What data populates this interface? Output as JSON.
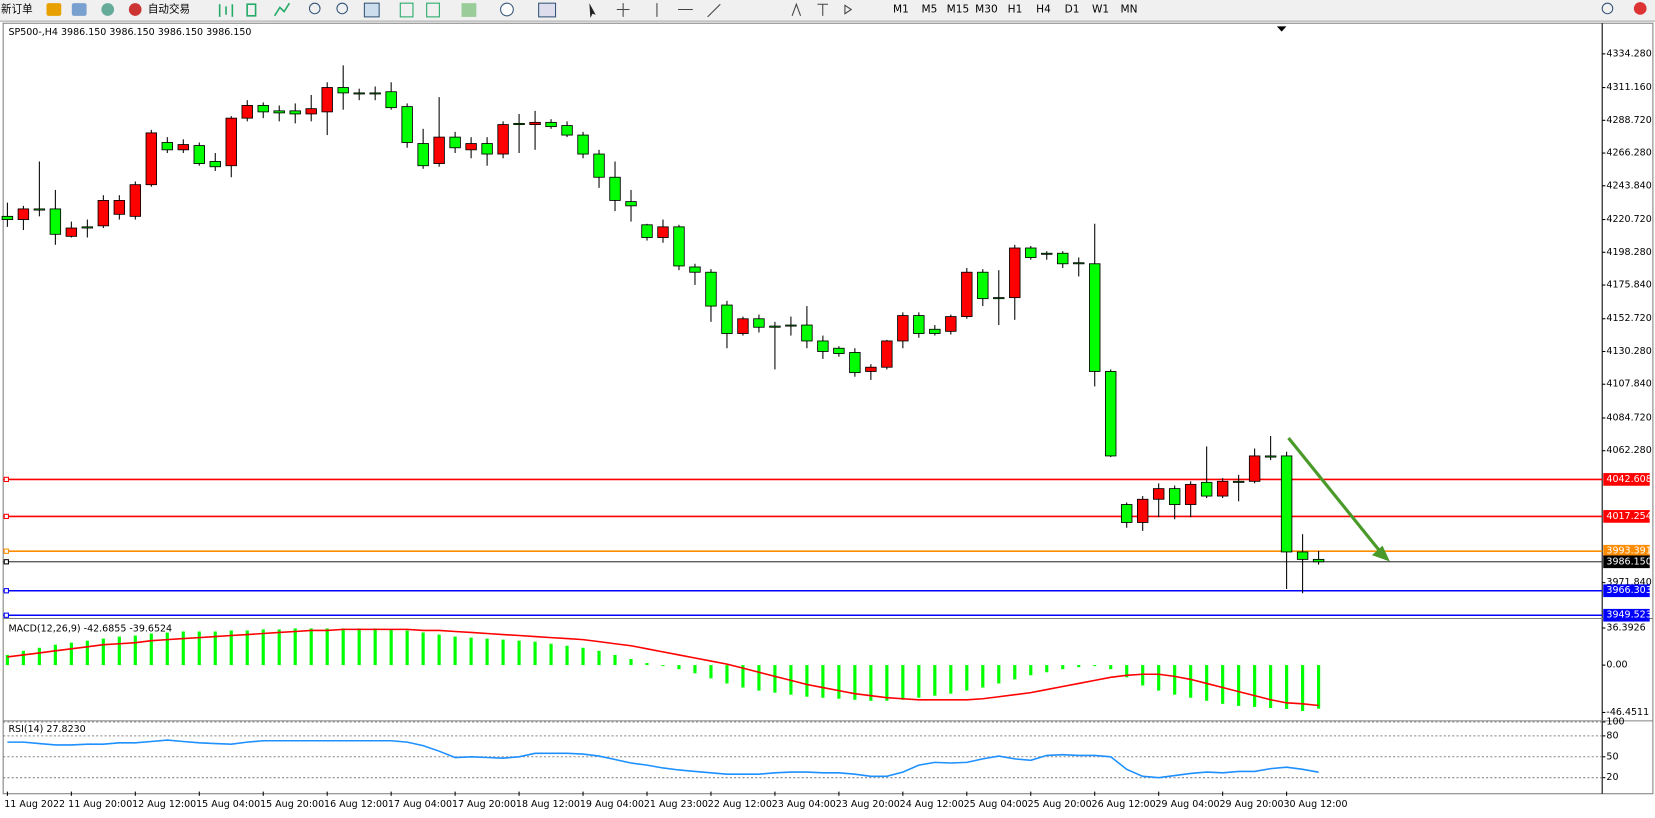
{
  "toolbar": {
    "new_order": "新订单",
    "auto_trading": "自动交易",
    "timeframes": [
      "M1",
      "M5",
      "M15",
      "M30",
      "H1",
      "H4",
      "D1",
      "W1",
      "MN"
    ]
  },
  "chart_data": [
    {
      "type": "candlestick",
      "title": "SP500-,H4  3986.150 3986.150 3986.150 3986.150",
      "categories": [
        "11 Aug 2022",
        null,
        null,
        null,
        "11 Aug 20:00",
        null,
        null,
        null,
        "12 Aug 12:00",
        null,
        null,
        null,
        "15 Aug 04:00",
        null,
        null,
        null,
        "15 Aug 20:00",
        null,
        null,
        null,
        "16 Aug 12:00",
        null,
        null,
        null,
        "17 Aug 04:00",
        null,
        null,
        null,
        "17 Aug 20:00",
        null,
        null,
        null,
        "18 Aug 12:00",
        null,
        null,
        null,
        "19 Aug 04:00",
        null,
        null,
        null,
        "21 Aug 23:00",
        null,
        null,
        null,
        "22 Aug 12:00",
        null,
        null,
        null,
        "23 Aug 04:00",
        null,
        null,
        null,
        "23 Aug 20:00",
        null,
        null,
        null,
        "24 Aug 12:00",
        null,
        null,
        null,
        "25 Aug 04:00",
        null,
        null,
        null,
        "25 Aug 20:00",
        null,
        null,
        null,
        "26 Aug 12:00",
        null,
        null,
        null,
        "29 Aug 04:00",
        null,
        null,
        null,
        "29 Aug 20:00",
        null,
        null,
        null,
        "30 Aug 12:00",
        null,
        null
      ],
      "ohlc": [
        [
          4222.9,
          4232.3,
          4215.7,
          4220.7
        ],
        [
          4220.7,
          4230.1,
          4213.5,
          4228.0
        ],
        [
          4228.0,
          4260.5,
          4222.9,
          4227.2
        ],
        [
          4228.0,
          4241.0,
          4203.4,
          4210.6
        ],
        [
          4209.2,
          4219.3,
          4208.4,
          4214.9
        ],
        [
          4215.7,
          4220.7,
          4208.4,
          4214.9
        ],
        [
          4216.4,
          4237.4,
          4214.9,
          4233.8
        ],
        [
          4224.3,
          4237.4,
          4220.7,
          4233.8
        ],
        [
          4222.9,
          4246.8,
          4220.7,
          4244.6
        ],
        [
          4244.6,
          4282.2,
          4243.2,
          4280.1
        ],
        [
          4273.5,
          4277.2,
          4266.3,
          4268.5
        ],
        [
          4268.5,
          4275.7,
          4266.3,
          4272.1
        ],
        [
          4271.4,
          4273.5,
          4257.6,
          4259.1
        ],
        [
          4260.5,
          4266.3,
          4254.0,
          4256.9
        ],
        [
          4257.6,
          4291.6,
          4249.7,
          4290.2
        ],
        [
          4290.2,
          4302.5,
          4288.0,
          4298.9
        ],
        [
          4298.9,
          4301.0,
          4290.2,
          4294.5
        ],
        [
          4295.2,
          4298.9,
          4288.0,
          4293.8
        ],
        [
          4295.2,
          4300.3,
          4286.6,
          4293.1
        ],
        [
          4293.1,
          4306.1,
          4288.0,
          4296.7
        ],
        [
          4294.5,
          4314.8,
          4278.6,
          4311.2
        ],
        [
          4311.2,
          4326.4,
          4296.0,
          4307.5
        ],
        [
          4307.5,
          4310.4,
          4302.5,
          4306.8
        ],
        [
          4307.5,
          4311.9,
          4302.5,
          4306.8
        ],
        [
          4308.3,
          4314.8,
          4296.0,
          4297.4
        ],
        [
          4298.1,
          4300.3,
          4269.9,
          4273.5
        ],
        [
          4272.8,
          4282.9,
          4255.5,
          4257.6
        ],
        [
          4259.1,
          4304.6,
          4256.9,
          4277.2
        ],
        [
          4277.2,
          4280.8,
          4266.3,
          4269.9
        ],
        [
          4268.5,
          4277.2,
          4262.7,
          4272.8
        ],
        [
          4272.8,
          4277.2,
          4257.6,
          4265.6
        ],
        [
          4265.6,
          4288.0,
          4262.7,
          4285.8
        ],
        [
          4286.6,
          4293.1,
          4266.3,
          4285.8
        ],
        [
          4285.8,
          4295.2,
          4268.5,
          4287.3
        ],
        [
          4287.3,
          4289.5,
          4282.9,
          4284.4
        ],
        [
          4285.1,
          4288.0,
          4277.2,
          4278.6
        ],
        [
          4278.6,
          4280.8,
          4262.7,
          4265.6
        ],
        [
          4265.6,
          4268.5,
          4242.4,
          4249.7
        ],
        [
          4249.7,
          4260.5,
          4226.5,
          4233.8
        ],
        [
          4233.0,
          4241.0,
          4219.3,
          4230.1
        ],
        [
          4217.1,
          4217.8,
          4206.3,
          4208.4
        ],
        [
          4208.4,
          4220.7,
          4204.8,
          4215.7
        ],
        [
          4215.7,
          4217.1,
          4186.0,
          4188.9
        ],
        [
          4188.2,
          4190.4,
          4175.9,
          4184.6
        ],
        [
          4184.6,
          4186.7,
          4150.6,
          4161.4
        ],
        [
          4162.1,
          4165.0,
          4132.5,
          4142.6
        ],
        [
          4142.6,
          4154.2,
          4141.2,
          4152.7
        ],
        [
          4152.7,
          4155.6,
          4143.3,
          4146.9
        ],
        [
          4147.7,
          4150.6,
          4118.0,
          4146.9
        ],
        [
          4148.4,
          4154.2,
          4141.2,
          4147.7
        ],
        [
          4148.4,
          4161.4,
          4132.5,
          4137.5
        ],
        [
          4137.5,
          4141.2,
          4125.2,
          4130.3
        ],
        [
          4132.5,
          4133.9,
          4126.7,
          4128.9
        ],
        [
          4129.6,
          4132.5,
          4113.0,
          4115.8
        ],
        [
          4116.6,
          4121.6,
          4110.8,
          4119.5
        ],
        [
          4119.5,
          4138.3,
          4118.0,
          4137.5
        ],
        [
          4137.5,
          4157.1,
          4132.5,
          4154.9
        ],
        [
          4154.9,
          4157.1,
          4139.7,
          4142.6
        ],
        [
          4145.5,
          4148.4,
          4141.2,
          4142.6
        ],
        [
          4144.1,
          4155.6,
          4141.9,
          4154.2
        ],
        [
          4154.2,
          4187.5,
          4152.7,
          4184.6
        ],
        [
          4184.6,
          4186.7,
          4161.4,
          4166.5
        ],
        [
          4167.2,
          4186.0,
          4148.4,
          4166.5
        ],
        [
          4167.2,
          4203.4,
          4152.0,
          4201.2
        ],
        [
          4201.2,
          4202.6,
          4193.2,
          4194.7
        ],
        [
          4197.6,
          4199.0,
          4193.2,
          4196.9
        ],
        [
          4197.6,
          4199.0,
          4187.5,
          4190.4
        ],
        [
          4191.1,
          4194.7,
          4181.7,
          4190.4
        ],
        [
          4190.4,
          4217.8,
          4106.4,
          4116.6
        ],
        [
          4116.6,
          4118.0,
          4057.9,
          4058.7
        ],
        [
          4025.4,
          4026.8,
          4009.5,
          4013.1
        ],
        [
          4013.1,
          4031.2,
          4007.3,
          4029.0
        ],
        [
          4029.0,
          4039.9,
          4016.7,
          4036.3
        ],
        [
          4036.3,
          4038.4,
          4015.3,
          4025.4
        ],
        [
          4025.4,
          4041.3,
          4016.7,
          4039.2
        ],
        [
          4040.6,
          4065.2,
          4029.8,
          4031.2
        ],
        [
          4031.2,
          4043.5,
          4029.8,
          4041.3
        ],
        [
          4041.3,
          4045.7,
          4027.6,
          4040.6
        ],
        [
          4041.3,
          4063.8,
          4039.9,
          4058.7
        ],
        [
          4058.7,
          4072.4,
          4055.8,
          4057.9
        ],
        [
          4058.7,
          4061.6,
          3967.5,
          3992.9
        ],
        [
          3992.9,
          4005.1,
          3964.6,
          3987.8
        ],
        [
          3987.8,
          3993.6,
          3984.2,
          3986.15
        ]
      ],
      "up_color": "#ff0000",
      "down_color": "#00ff00",
      "ylim": [
        3948,
        4355.26
      ],
      "yticks": [
        {
          "value": 4334.28,
          "label": "4334.280"
        },
        {
          "value": 4311.16,
          "label": "4311.160"
        },
        {
          "value": 4288.72,
          "label": "4288.720"
        },
        {
          "value": 4266.28,
          "label": "4266.280"
        },
        {
          "value": 4243.84,
          "label": "4243.840"
        },
        {
          "value": 4220.72,
          "label": "4220.720"
        },
        {
          "value": 4198.28,
          "label": "4198.280"
        },
        {
          "value": 4175.84,
          "label": "4175.840"
        },
        {
          "value": 4152.72,
          "label": "4152.720"
        },
        {
          "value": 4130.28,
          "label": "4130.280"
        },
        {
          "value": 4107.84,
          "label": "4107.840"
        },
        {
          "value": 4084.72,
          "label": "4084.720"
        },
        {
          "value": 4062.28,
          "label": "4062.280"
        },
        {
          "value": 3971.84,
          "label": "3971.840"
        }
      ],
      "levels": [
        {
          "value": 4042.608,
          "color": "#ff0000"
        },
        {
          "value": 4017.254,
          "color": "#ff0000"
        },
        {
          "value": 3993.391,
          "color": "#ff8c00"
        },
        {
          "value": 3986.15,
          "label": "3986.150",
          "color": "#000000"
        },
        {
          "value": 3966.303,
          "color": "#0000ff"
        },
        {
          "value": 3949.523,
          "color": "#0000ff"
        }
      ]
    },
    {
      "type": "macd",
      "title": "MACD(12,26,9) -42.6855 -39.6524",
      "values": [
        10,
        14,
        17,
        20,
        22,
        24,
        26,
        28,
        29,
        31,
        32,
        33,
        33,
        33,
        34,
        34,
        35,
        35,
        36,
        36,
        36,
        36,
        36,
        36,
        35,
        34,
        32,
        30,
        28,
        27,
        26,
        25,
        24,
        23,
        21,
        19,
        17,
        14,
        10,
        6,
        2,
        -1,
        -4,
        -8,
        -13,
        -18,
        -22,
        -25,
        -27,
        -29,
        -31,
        -32,
        -33,
        -34,
        -35,
        -35,
        -34,
        -32,
        -30,
        -28,
        -25,
        -22,
        -18,
        -14,
        -10,
        -7,
        -4,
        -2,
        -1,
        -4,
        -12,
        -20,
        -25,
        -29,
        -32,
        -35,
        -38,
        -40,
        -41,
        -42,
        -43,
        -45,
        -42.6855
      ],
      "signal": [
        8,
        10,
        12,
        14,
        16,
        18,
        20,
        21,
        22,
        24,
        25,
        26,
        27,
        28,
        29,
        30,
        31,
        32,
        33,
        34,
        34,
        35,
        35,
        35,
        35,
        35,
        34,
        34,
        33,
        32,
        31,
        30,
        29,
        28,
        27,
        26,
        25,
        23,
        21,
        19,
        16,
        13,
        10,
        7,
        4,
        1,
        -3,
        -7,
        -11,
        -15,
        -19,
        -22,
        -25,
        -28,
        -30,
        -32,
        -33,
        -34,
        -34,
        -34,
        -34,
        -33,
        -31,
        -29,
        -27,
        -24,
        -21,
        -18,
        -15,
        -12,
        -10,
        -9,
        -9,
        -11,
        -14,
        -18,
        -22,
        -26,
        -30,
        -34,
        -37,
        -38,
        -39.6524
      ],
      "color": "#00ff00",
      "signal_color": "#ff0000",
      "ylim": [
        -52.66,
        44.68
      ],
      "yticks": [
        36.3926,
        {
          "value": 0,
          "label": "0.00"
        },
        -46.4511
      ]
    },
    {
      "type": "line",
      "title": "RSI(14) 27.8230",
      "values": [
        71,
        71,
        69,
        67,
        67,
        68,
        68,
        70,
        70,
        72,
        74,
        72,
        70,
        69,
        68,
        71,
        73,
        73,
        73,
        73,
        73,
        73,
        73,
        73,
        73,
        71,
        66,
        58,
        49,
        50,
        49,
        48,
        50,
        55,
        55,
        55,
        54,
        51,
        46,
        41,
        38,
        34,
        31,
        29,
        27,
        25,
        25,
        25,
        27,
        28,
        28,
        27,
        27,
        25,
        22,
        22,
        28,
        38,
        42,
        41,
        42,
        47,
        51,
        47,
        45,
        52,
        53,
        52,
        52,
        50,
        32,
        22,
        20,
        23,
        26,
        28,
        27,
        29,
        29,
        33,
        35,
        32,
        27.823
      ],
      "color": "#1e90ff",
      "ylim": [
        0,
        100
      ],
      "yticks": [
        100,
        80,
        50,
        20
      ],
      "grid": "dashed"
    }
  ]
}
